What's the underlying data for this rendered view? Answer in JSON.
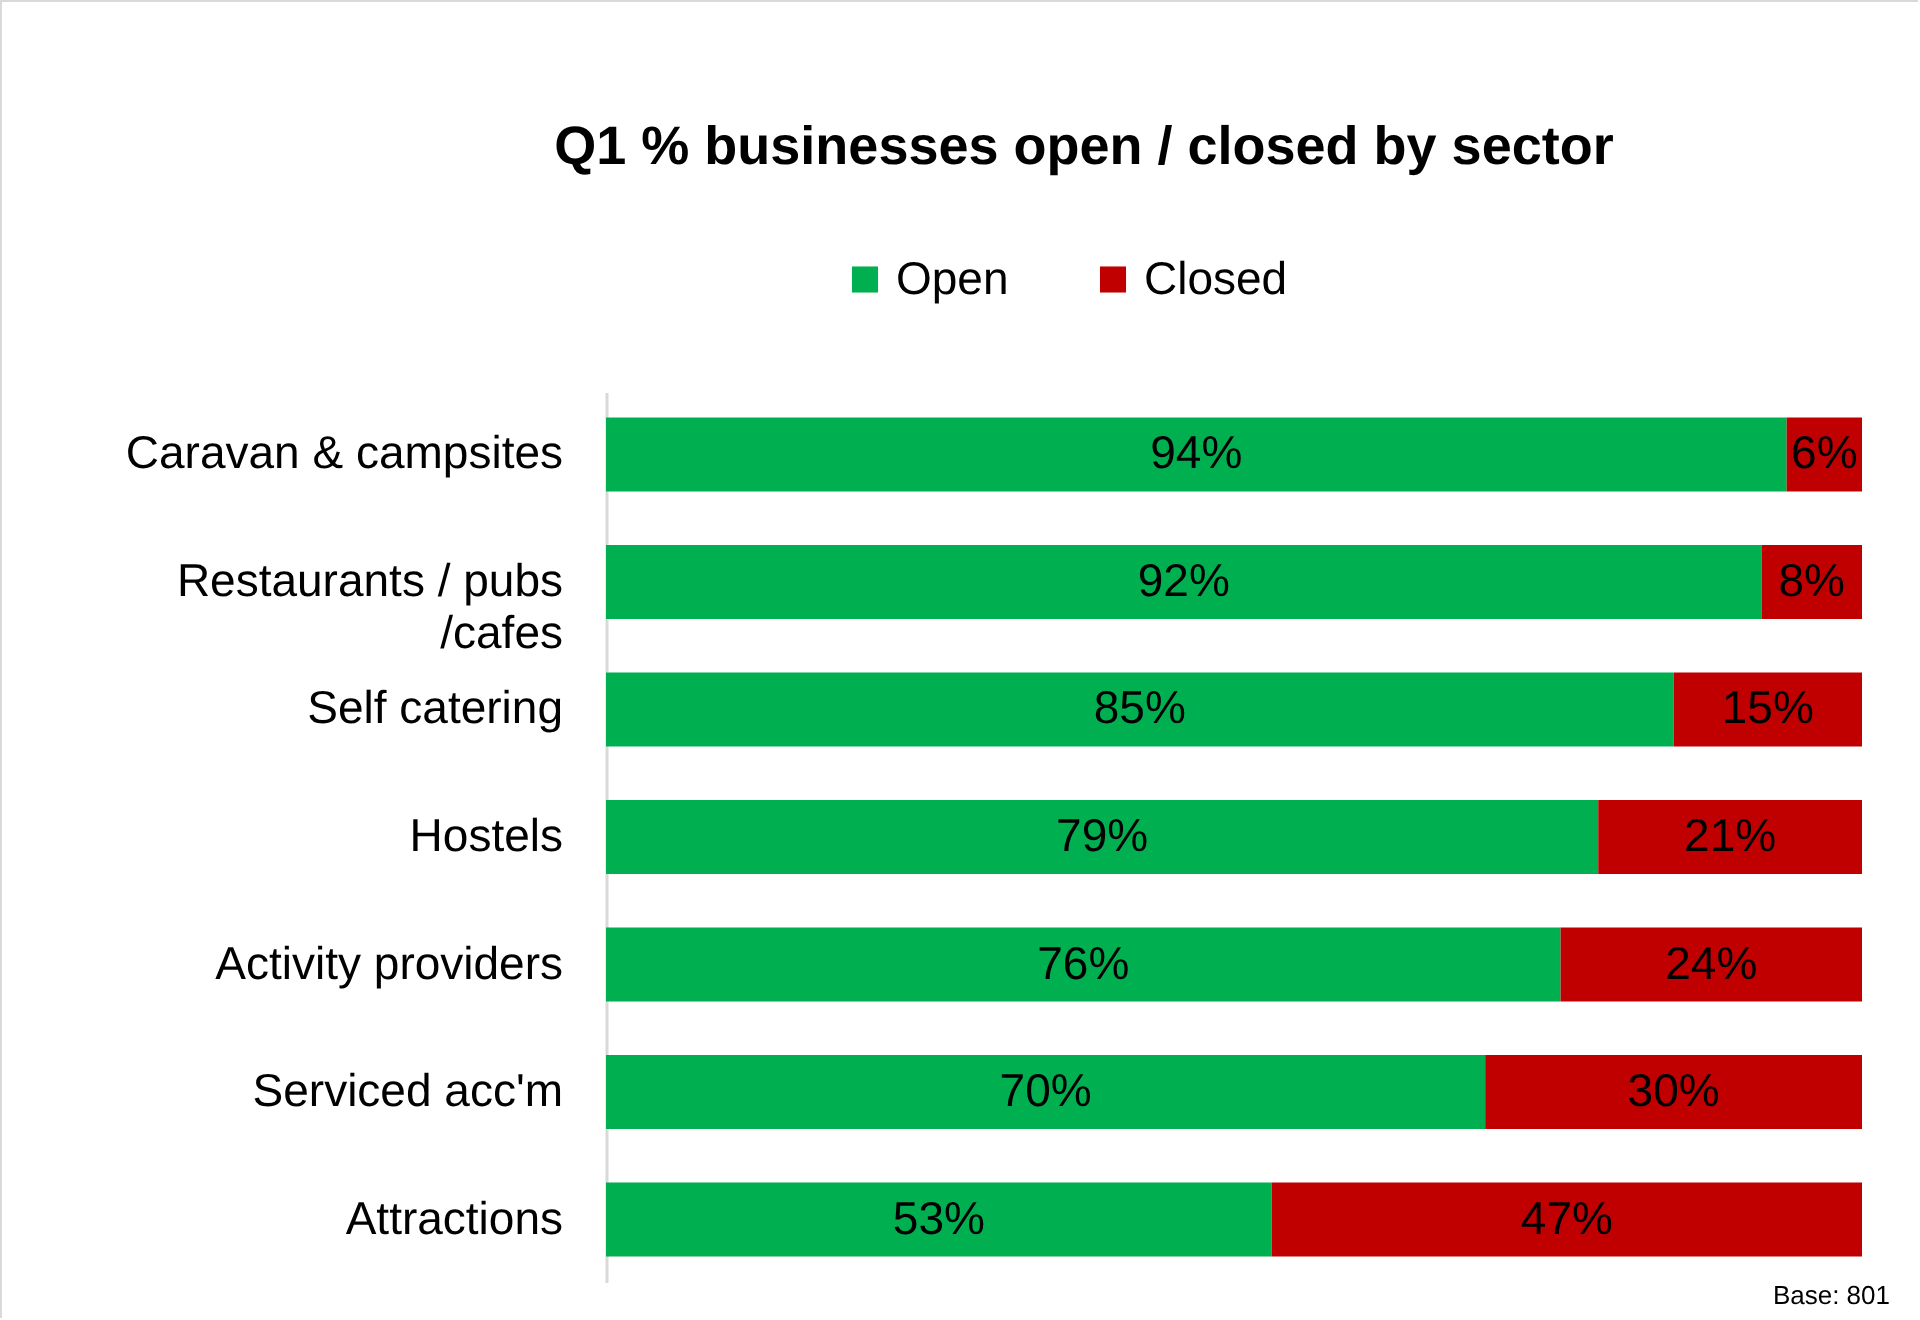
{
  "chart_data": {
    "type": "bar",
    "orientation": "horizontal",
    "stacked": true,
    "title": "Q1 % businesses open / closed by sector",
    "legend": "top",
    "categories": [
      "Caravan & campsites",
      "Restaurants / pubs /cafes",
      "Self catering",
      "Hostels",
      "Activity providers",
      "Serviced acc'm",
      "Attractions"
    ],
    "series": [
      {
        "name": "Open",
        "color": "#00b050",
        "values": [
          94,
          92,
          85,
          79,
          76,
          70,
          53
        ],
        "value_labels": [
          "94%",
          "92%",
          "85%",
          "79%",
          "76%",
          "70%",
          "53%"
        ]
      },
      {
        "name": "Closed",
        "color": "#c00000",
        "values": [
          6,
          8,
          15,
          21,
          24,
          30,
          47
        ],
        "value_labels": [
          "6%",
          "8%",
          "15%",
          "21%",
          "24%",
          "30%",
          "47%"
        ]
      }
    ],
    "annotations": [
      "Base: 801"
    ]
  }
}
